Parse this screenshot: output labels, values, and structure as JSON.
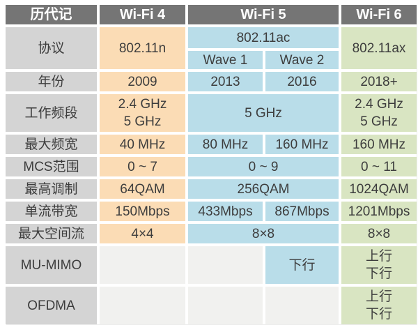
{
  "table": {
    "header": {
      "col0": "历代记",
      "wifi4": "Wi-Fi 4",
      "wifi5": "Wi-Fi 5",
      "wifi6": "Wi-Fi 6"
    },
    "rows": {
      "protocol": {
        "label": "协议",
        "wifi4": "802.11n",
        "wifi5": "802.11ac",
        "wave1": "Wave 1",
        "wave2": "Wave 2",
        "wifi6": "802.11ax"
      },
      "year": {
        "label": "年份",
        "wifi4": "2009",
        "wave1": "2013",
        "wave2": "2016",
        "wifi6": "2018+"
      },
      "bands": {
        "label": "工作频段",
        "wifi4": "2.4 GHz\n5 GHz",
        "wifi5": "5 GHz",
        "wifi6": "2.4 GHz\n5 GHz"
      },
      "max_bandwidth": {
        "label": "最大频宽",
        "wifi4": "40 MHz",
        "wave1": "80 MHz",
        "wave2": "160 MHz",
        "wifi6": "160 MHz"
      },
      "mcs_range": {
        "label": "MCS范围",
        "wifi4": "0 ~ 7",
        "wifi5": "0 ~ 9",
        "wifi6": "0 ~ 11"
      },
      "modulation": {
        "label": "最高调制",
        "wifi4": "64QAM",
        "wifi5": "256QAM",
        "wifi6": "1024QAM"
      },
      "stream_rate": {
        "label": "单流带宽",
        "wifi4": "150Mbps",
        "wave1": "433Mbps",
        "wave2": "867Mbps",
        "wifi6": "1201Mbps"
      },
      "spatial_streams": {
        "label": "最大空间流",
        "wifi4": "4×4",
        "wifi5": "8×8",
        "wifi6": "8×8"
      },
      "mu_mimo": {
        "label": "MU-MIMO",
        "wifi4": "",
        "wave1": "",
        "wave2": "下行",
        "wifi6": "上行\n下行"
      },
      "ofdma": {
        "label": "OFDMA",
        "wifi4": "",
        "wave1": "",
        "wave2": "",
        "wifi6": "上行\n下行"
      }
    },
    "colors": {
      "header_bg": "#757575",
      "header_text": "#ffffff",
      "label_col_bg": "#d4d4d4",
      "wifi4_bg": "#fbdcb5",
      "wifi5_bg": "#b9dde9",
      "wifi6_bg": "#d9e5c2",
      "empty_bg": "#f1f1ef",
      "text": "#3d3d3d"
    }
  },
  "chart_data": {
    "type": "table",
    "title": "历代记 — Wi-Fi 4 / Wi-Fi 5 / Wi-Fi 6 对比",
    "columns": [
      "历代记",
      "Wi-Fi 4",
      "Wi-Fi 5 (Wave 1)",
      "Wi-Fi 5 (Wave 2)",
      "Wi-Fi 6"
    ],
    "rows": [
      [
        "协议",
        "802.11n",
        "802.11ac Wave 1",
        "802.11ac Wave 2",
        "802.11ax"
      ],
      [
        "年份",
        "2009",
        "2013",
        "2016",
        "2018+"
      ],
      [
        "工作频段",
        "2.4 GHz / 5 GHz",
        "5 GHz",
        "5 GHz",
        "2.4 GHz / 5 GHz"
      ],
      [
        "最大频宽",
        "40 MHz",
        "80 MHz",
        "160 MHz",
        "160 MHz"
      ],
      [
        "MCS范围",
        "0 ~ 7",
        "0 ~ 9",
        "0 ~ 9",
        "0 ~ 11"
      ],
      [
        "最高调制",
        "64QAM",
        "256QAM",
        "256QAM",
        "1024QAM"
      ],
      [
        "单流带宽",
        "150Mbps",
        "433Mbps",
        "867Mbps",
        "1201Mbps"
      ],
      [
        "最大空间流",
        "4×4",
        "8×8",
        "8×8",
        "8×8"
      ],
      [
        "MU-MIMO",
        "",
        "",
        "下行",
        "上行 下行"
      ],
      [
        "OFDMA",
        "",
        "",
        "",
        "上行 下行"
      ]
    ]
  }
}
